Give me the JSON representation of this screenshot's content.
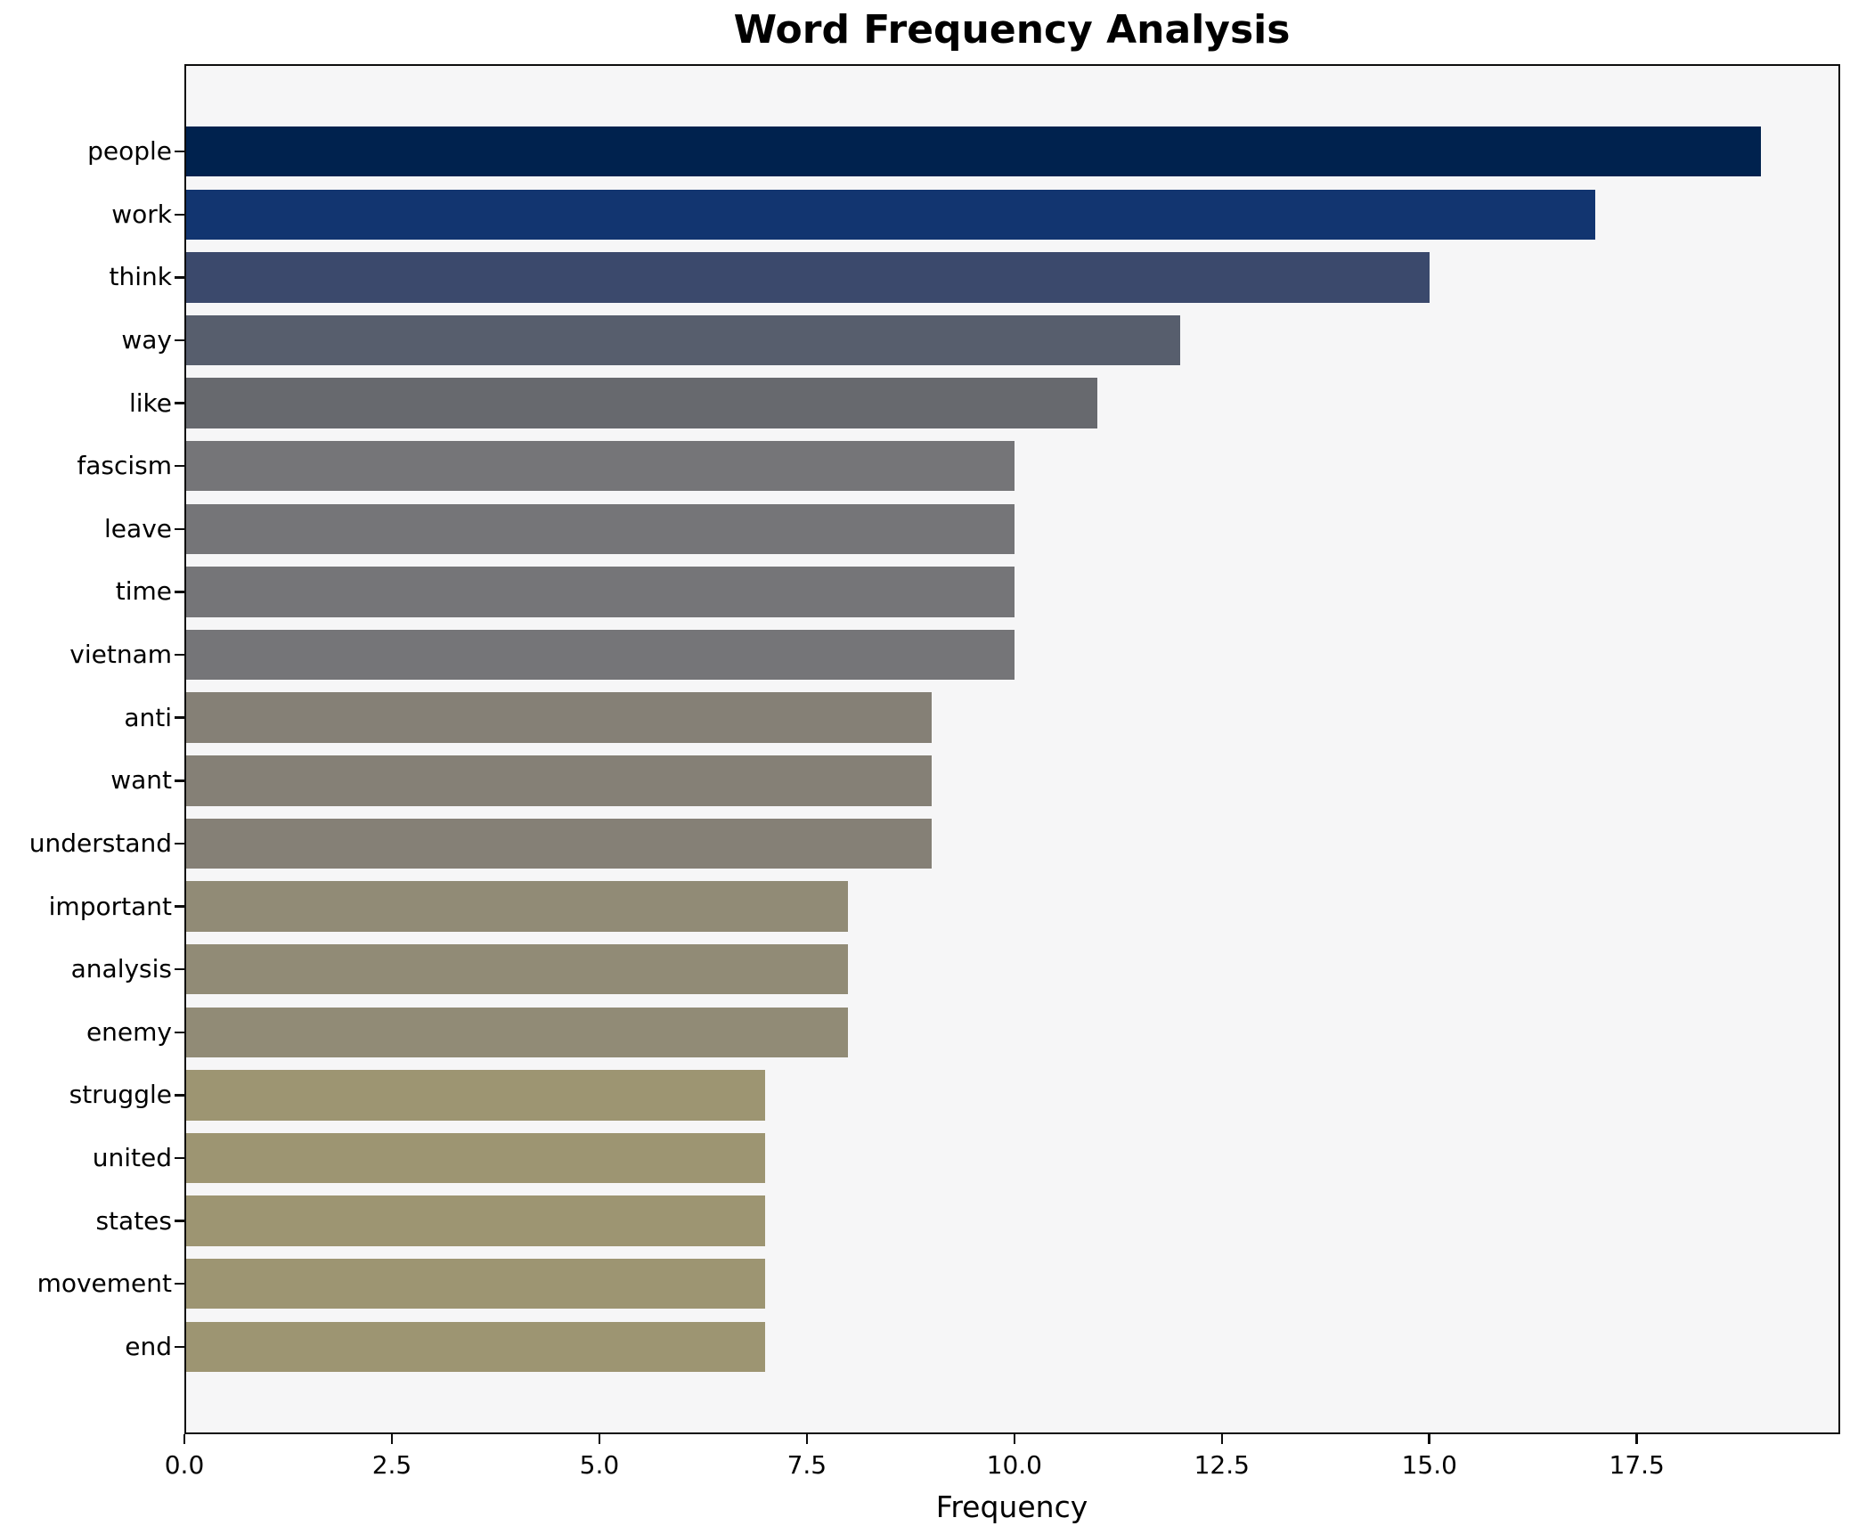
{
  "figure": {
    "background": "#ffffff",
    "plot_background": "#f6f6f7",
    "spine_color": "#0d0d0d",
    "text_color": "#000000"
  },
  "chart_data": {
    "type": "bar",
    "orientation": "horizontal",
    "title": "Word Frequency Analysis",
    "xlabel": "Frequency",
    "ylabel": "",
    "categories": [
      "people",
      "work",
      "think",
      "way",
      "like",
      "fascism",
      "leave",
      "time",
      "vietnam",
      "anti",
      "want",
      "understand",
      "important",
      "analysis",
      "enemy",
      "struggle",
      "united",
      "states",
      "movement",
      "end"
    ],
    "values": [
      19,
      17,
      15,
      12,
      11,
      10,
      10,
      10,
      10,
      9,
      9,
      9,
      8,
      8,
      8,
      7,
      7,
      7,
      7,
      7
    ],
    "bar_colors": [
      "#00224e",
      "#123570",
      "#3b496c",
      "#575e6d",
      "#67696e",
      "#757578",
      "#757578",
      "#757578",
      "#757578",
      "#858076",
      "#858076",
      "#858076",
      "#918b76",
      "#918b76",
      "#918b76",
      "#9d9572",
      "#9d9572",
      "#9d9572",
      "#9d9572",
      "#9d9572"
    ],
    "xlim": [
      0,
      19.95
    ],
    "xticks": {
      "values": [
        0,
        2.5,
        5,
        7.5,
        10,
        12.5,
        15,
        17.5
      ],
      "labels": [
        "0.0",
        "2.5",
        "5.0",
        "7.5",
        "10.0",
        "12.5",
        "15.0",
        "17.5"
      ]
    },
    "grid": false,
    "legend": null
  }
}
